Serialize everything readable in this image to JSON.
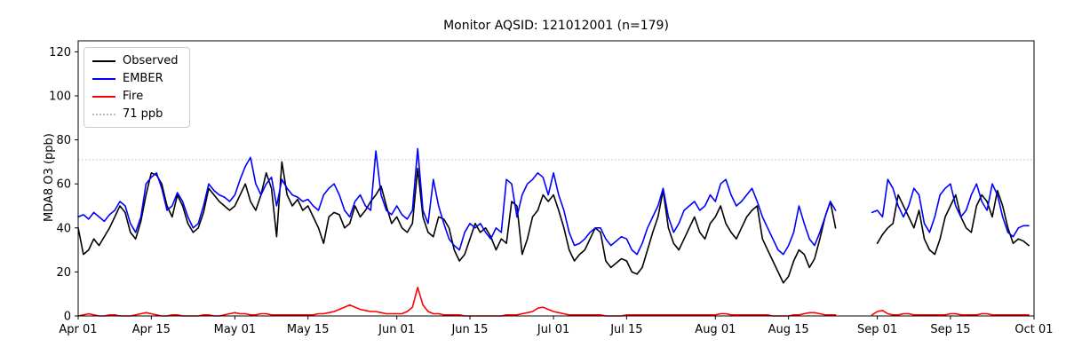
{
  "chart_data": {
    "type": "line",
    "title": "Monitor AQSID: 121012001 (n=179)",
    "xlabel": "",
    "ylabel": "MDA8 O3 (ppb)",
    "xlim": [
      0,
      183
    ],
    "ylim": [
      0,
      125
    ],
    "grid": false,
    "legend_position": "upper left",
    "xticks": [
      0,
      14,
      30,
      44,
      61,
      75,
      91,
      105,
      122,
      136,
      153,
      167,
      183
    ],
    "xtick_labels": [
      "Apr 01",
      "Apr 15",
      "May 01",
      "May 15",
      "Jun 01",
      "Jun 15",
      "Jul 01",
      "Jul 15",
      "Aug 01",
      "Aug 15",
      "Sep 01",
      "Sep 15",
      "Oct 01"
    ],
    "yticks": [
      0,
      20,
      40,
      60,
      80,
      100,
      120
    ],
    "threshold": {
      "value": 71,
      "label": "71 ppb",
      "color": "#bcbcbc",
      "style": "dotted"
    },
    "legend": [
      {
        "label": "Observed",
        "color": "#000000",
        "dash": false
      },
      {
        "label": "EMBER",
        "color": "#0000ff",
        "dash": false
      },
      {
        "label": "Fire",
        "color": "#ff0000",
        "dash": false
      },
      {
        "label": "71 ppb",
        "color": "#bcbcbc",
        "dash": true
      }
    ],
    "series": [
      {
        "name": "Observed",
        "color": "#000000",
        "values": [
          40,
          28,
          30,
          35,
          32,
          36,
          40,
          45,
          50,
          47,
          38,
          35,
          43,
          55,
          65,
          64,
          60,
          50,
          45,
          55,
          50,
          42,
          38,
          40,
          47,
          58,
          55,
          52,
          50,
          48,
          50,
          55,
          60,
          52,
          48,
          55,
          65,
          58,
          36,
          70,
          55,
          50,
          53,
          48,
          50,
          45,
          40,
          33,
          45,
          47,
          46,
          40,
          42,
          50,
          45,
          48,
          52,
          55,
          59,
          50,
          42,
          45,
          40,
          38,
          42,
          67,
          45,
          38,
          36,
          45,
          44,
          40,
          30,
          25,
          28,
          35,
          42,
          38,
          40,
          36,
          30,
          35,
          33,
          52,
          50,
          28,
          35,
          45,
          48,
          55,
          52,
          55,
          48,
          40,
          30,
          25,
          28,
          30,
          35,
          40,
          38,
          25,
          22,
          24,
          26,
          25,
          20,
          19,
          22,
          30,
          38,
          45,
          57,
          40,
          33,
          30,
          35,
          40,
          45,
          38,
          35,
          42,
          45,
          50,
          42,
          38,
          35,
          40,
          45,
          48,
          50,
          35,
          30,
          25,
          20,
          15,
          18,
          25,
          30,
          28,
          22,
          26,
          35,
          45,
          52,
          40,
          null,
          null,
          null,
          null,
          null,
          null,
          null,
          33,
          37,
          40,
          42,
          55,
          50,
          45,
          40,
          48,
          35,
          30,
          28,
          35,
          45,
          50,
          55,
          45,
          40,
          38,
          50,
          55,
          52,
          45,
          57,
          50,
          40,
          33,
          35,
          34,
          32
        ]
      },
      {
        "name": "EMBER",
        "color": "#0000ff",
        "values": [
          45,
          46,
          44,
          47,
          45,
          43,
          46,
          48,
          52,
          50,
          42,
          38,
          45,
          60,
          63,
          65,
          58,
          48,
          50,
          56,
          52,
          45,
          40,
          42,
          50,
          60,
          57,
          55,
          54,
          52,
          55,
          62,
          68,
          72,
          60,
          55,
          60,
          63,
          50,
          62,
          58,
          55,
          54,
          52,
          53,
          50,
          48,
          55,
          58,
          60,
          55,
          48,
          45,
          52,
          55,
          50,
          48,
          75,
          55,
          48,
          46,
          50,
          46,
          44,
          48,
          76,
          48,
          42,
          62,
          50,
          42,
          35,
          32,
          30,
          38,
          42,
          40,
          42,
          38,
          35,
          40,
          38,
          62,
          60,
          45,
          55,
          60,
          62,
          65,
          63,
          55,
          65,
          55,
          48,
          38,
          32,
          33,
          35,
          38,
          40,
          40,
          35,
          32,
          34,
          36,
          35,
          30,
          28,
          33,
          40,
          45,
          50,
          58,
          45,
          38,
          42,
          48,
          50,
          52,
          48,
          50,
          55,
          52,
          60,
          62,
          55,
          50,
          52,
          55,
          58,
          52,
          45,
          40,
          35,
          30,
          28,
          32,
          38,
          50,
          42,
          35,
          32,
          38,
          45,
          52,
          48,
          null,
          null,
          null,
          null,
          null,
          null,
          47,
          48,
          45,
          62,
          58,
          50,
          45,
          50,
          58,
          55,
          42,
          38,
          45,
          55,
          58,
          60,
          50,
          45,
          48,
          55,
          60,
          52,
          48,
          60,
          55,
          45,
          38,
          36,
          40,
          41,
          41
        ]
      },
      {
        "name": "Fire",
        "color": "#ff0000",
        "values": [
          0,
          0.5,
          1,
          0.5,
          0,
          0,
          0.5,
          0.5,
          0,
          0,
          0,
          0.5,
          1,
          1.5,
          1,
          0.5,
          0,
          0,
          0.5,
          0.5,
          0,
          0,
          0,
          0,
          0.5,
          0.5,
          0,
          0,
          0.5,
          1,
          1.5,
          1,
          1,
          0.5,
          0.5,
          1,
          1,
          0.5,
          0.5,
          0.5,
          0.5,
          0.5,
          0.5,
          0.5,
          0.5,
          0.5,
          1,
          1,
          1.5,
          2,
          3,
          4,
          5,
          4,
          3,
          2.5,
          2,
          2,
          1.5,
          1,
          1,
          1,
          1,
          2,
          4,
          13,
          5,
          2,
          1,
          1,
          0.5,
          0.5,
          0.5,
          0.5,
          0,
          0,
          0,
          0,
          0,
          0,
          0,
          0,
          0.5,
          0.5,
          0.5,
          1,
          1.5,
          2,
          3.5,
          4,
          3,
          2,
          1.5,
          1,
          0.5,
          0.5,
          0.5,
          0.5,
          0.5,
          0.5,
          0.5,
          0,
          0,
          0,
          0,
          0.5,
          0.5,
          0.5,
          0.5,
          0.5,
          0.5,
          0.5,
          0.5,
          0.5,
          0.5,
          0.5,
          0.5,
          0.5,
          0.5,
          0.5,
          0.5,
          0.5,
          0.5,
          1,
          1,
          0.5,
          0.5,
          0.5,
          0.5,
          0.5,
          0.5,
          0.5,
          0.5,
          0,
          0,
          0,
          0,
          0.5,
          0.5,
          1,
          1.5,
          1.5,
          1,
          0.5,
          0.5,
          0.5,
          null,
          null,
          null,
          null,
          null,
          null,
          0.5,
          2,
          2.5,
          1,
          0.5,
          0.5,
          1,
          1,
          0.5,
          0.5,
          0.5,
          0.5,
          0.5,
          0.5,
          0.5,
          1,
          1,
          0.5,
          0.5,
          0.5,
          0.5,
          1,
          1,
          0.5,
          0.5,
          0.5,
          0.5,
          0.5,
          0.5,
          0.5,
          0.5
        ]
      }
    ]
  }
}
